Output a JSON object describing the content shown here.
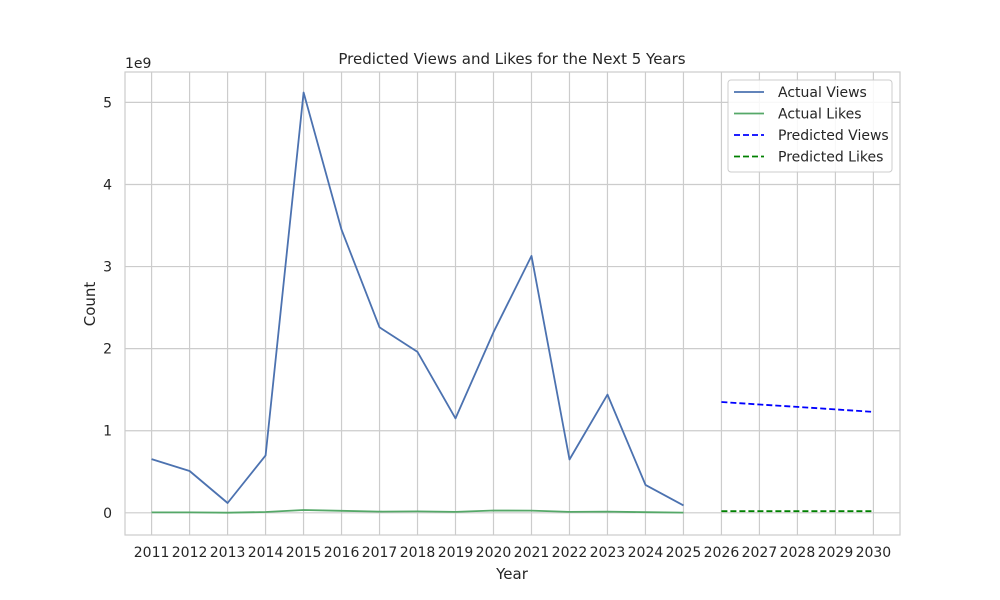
{
  "chart_data": {
    "type": "line",
    "title": "Predicted Views and Likes for the Next 5 Years",
    "xlabel": "Year",
    "ylabel": "Count",
    "y_offset_text": "1e9",
    "y_scale": 1000000000,
    "xlim": [
      2010.3,
      2030.7
    ],
    "ylim": [
      -0.27,
      5.37
    ],
    "grid": true,
    "legend_position": "top-right",
    "x_ticks": [
      2011,
      2012,
      2013,
      2014,
      2015,
      2016,
      2017,
      2018,
      2019,
      2020,
      2021,
      2022,
      2023,
      2024,
      2025,
      2026,
      2027,
      2028,
      2029,
      2030
    ],
    "y_ticks": [
      0,
      1,
      2,
      3,
      4,
      5
    ],
    "series": [
      {
        "name": "Actual Views",
        "color": "#4c72b0",
        "style": "solid",
        "x": [
          2011,
          2012,
          2013,
          2014,
          2015,
          2016,
          2017,
          2018,
          2019,
          2020,
          2021,
          2022,
          2023,
          2024,
          2025
        ],
        "y": [
          0.655,
          0.51,
          0.12,
          0.7,
          5.12,
          3.45,
          2.26,
          1.96,
          1.15,
          2.2,
          3.13,
          0.65,
          1.44,
          0.34,
          0.09
        ]
      },
      {
        "name": "Actual Likes",
        "color": "#55a868",
        "style": "solid",
        "x": [
          2011,
          2012,
          2013,
          2014,
          2015,
          2016,
          2017,
          2018,
          2019,
          2020,
          2021,
          2022,
          2023,
          2024,
          2025
        ],
        "y": [
          0.005,
          0.005,
          0.002,
          0.01,
          0.035,
          0.025,
          0.015,
          0.018,
          0.012,
          0.028,
          0.027,
          0.012,
          0.015,
          0.008,
          0.003
        ]
      },
      {
        "name": "Predicted Views",
        "color": "#0000ff",
        "style": "dashed",
        "x": [
          2026,
          2027,
          2028,
          2029,
          2030
        ],
        "y": [
          1.35,
          1.32,
          1.29,
          1.26,
          1.23
        ]
      },
      {
        "name": "Predicted Likes",
        "color": "#008000",
        "style": "dashed",
        "x": [
          2026,
          2027,
          2028,
          2029,
          2030
        ],
        "y": [
          0.02,
          0.02,
          0.02,
          0.02,
          0.02
        ]
      }
    ]
  }
}
